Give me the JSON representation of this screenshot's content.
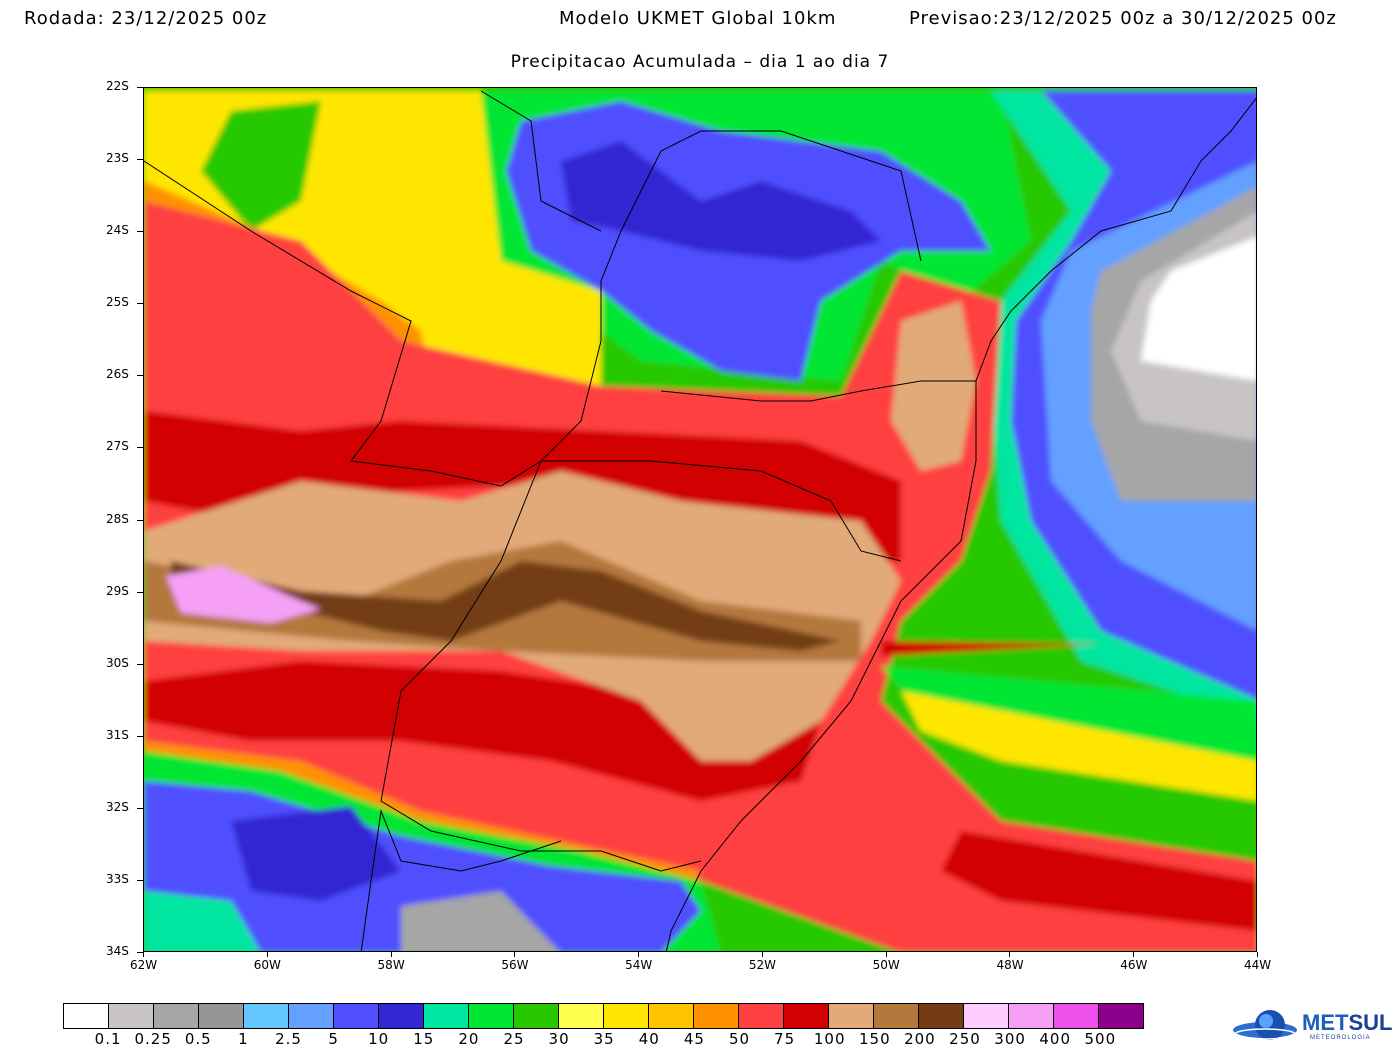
{
  "header": {
    "run": "Rodada: 23/12/2025 00z",
    "model": "Modelo UKMET Global 10km",
    "forecast": "Previsao:23/12/2025 00z a 30/12/2025 00z",
    "subtitle": "Precipitacao Acumulada – dia 1 ao dia 7"
  },
  "map": {
    "lat_ticks": [
      "22S",
      "23S",
      "24S",
      "25S",
      "26S",
      "27S",
      "28S",
      "29S",
      "30S",
      "31S",
      "32S",
      "33S",
      "34S"
    ],
    "lon_ticks": [
      "62W",
      "60W",
      "58W",
      "56W",
      "54W",
      "52W",
      "50W",
      "48W",
      "46W",
      "44W"
    ],
    "lat_range": [
      -22,
      -34
    ],
    "lon_range": [
      -62,
      -44
    ]
  },
  "colorbar": {
    "colors": [
      "#ffffff",
      "#c8c4c4",
      "#a6a6a6",
      "#969696",
      "#64c8ff",
      "#64a0ff",
      "#5050ff",
      "#3228d2",
      "#00e6a0",
      "#00e632",
      "#28c800",
      "#ffff50",
      "#ffe600",
      "#ffc300",
      "#ff9100",
      "#ff4040",
      "#d20000",
      "#e1aa78",
      "#b4783c",
      "#733c14",
      "#ffcdff",
      "#f5a0f5",
      "#eb50eb",
      "#8c008c"
    ],
    "labels": [
      "0.1",
      "0.25",
      "0.5",
      "1",
      "2.5",
      "5",
      "10",
      "15",
      "20",
      "25",
      "30",
      "35",
      "40",
      "45",
      "50",
      "75",
      "100",
      "150",
      "200",
      "250",
      "300",
      "400",
      "500"
    ]
  },
  "logo": {
    "text_a": "MET",
    "text_b": "SUL",
    "sub": "METEOROLOGIA"
  }
}
